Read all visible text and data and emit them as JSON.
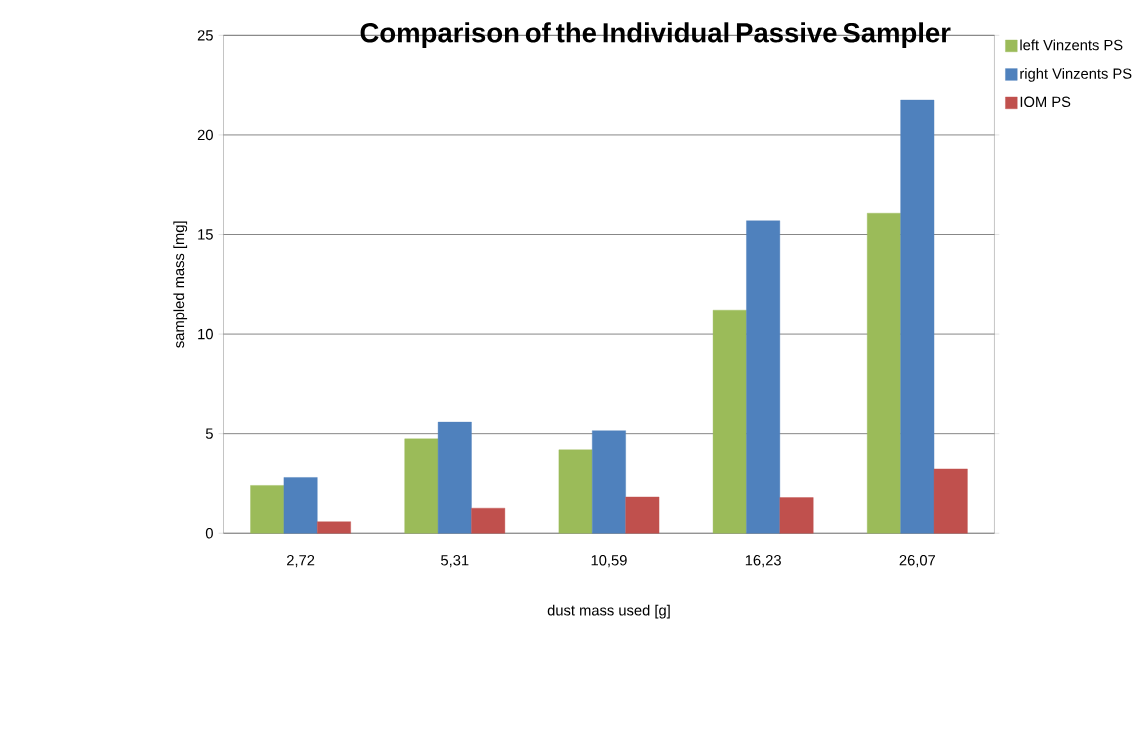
{
  "chart_data": {
    "type": "bar",
    "title": "Comparison of the Individual Passive Sampler",
    "xlabel": "dust mass used [g]",
    "ylabel": "sampled mass [mg]",
    "categories": [
      "2,72",
      "5,31",
      "10,59",
      "16,23",
      "26,07"
    ],
    "series": [
      {
        "name": "left Vinzents PS",
        "color": "#9bbb59",
        "values": [
          2.4,
          4.74,
          4.19,
          11.2,
          16.07
        ]
      },
      {
        "name": "right Vinzents PS",
        "color": "#4f81bd",
        "values": [
          2.8,
          5.58,
          5.15,
          15.69,
          21.75
        ]
      },
      {
        "name": "IOM PS",
        "color": "#c0504d",
        "values": [
          0.58,
          1.26,
          1.82,
          1.79,
          3.23
        ]
      }
    ],
    "ylim": [
      0,
      25
    ],
    "yticks": [
      0,
      5,
      10,
      15,
      20,
      25
    ],
    "grid": "y",
    "legend": "right"
  }
}
